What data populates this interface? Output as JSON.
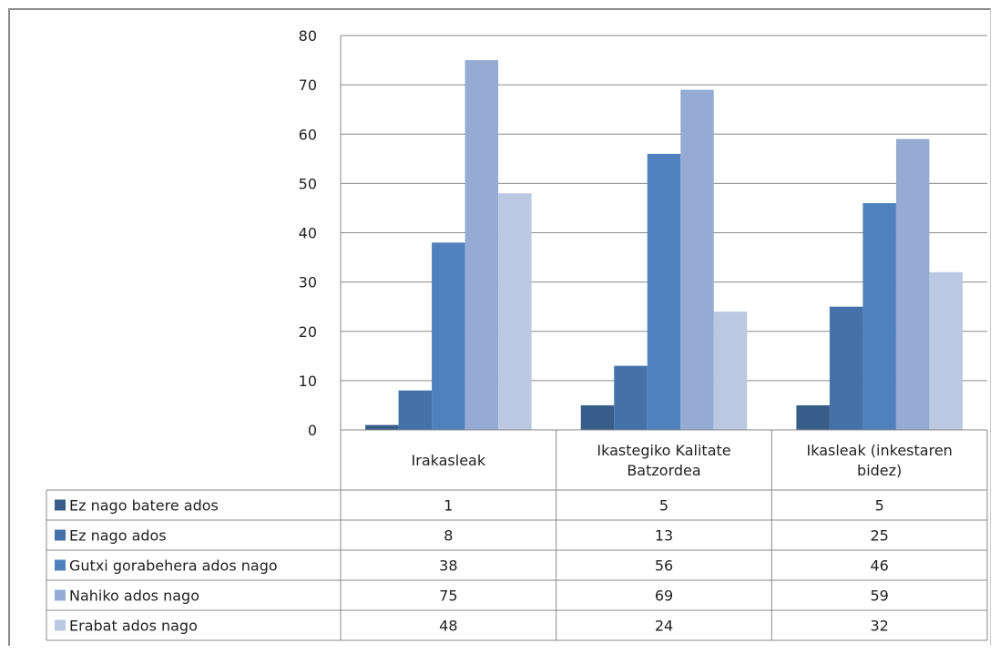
{
  "chart_data": {
    "type": "bar",
    "title": "",
    "xlabel": "",
    "ylabel": "",
    "categories": [
      "Irakasleak",
      "Ikastegiko Kalitate Batzordea",
      "Ikasleak (inkestaren bidez)"
    ],
    "category_lines": [
      [
        "Irakasleak"
      ],
      [
        "Ikastegiko Kalitate",
        "Batzordea"
      ],
      [
        "Ikasleak (inkestaren",
        "bidez)"
      ]
    ],
    "ylim": [
      0,
      80
    ],
    "yticks": [
      0,
      10,
      20,
      30,
      40,
      50,
      60,
      70,
      80
    ],
    "grid": true,
    "legend_placement": "data-table",
    "series": [
      {
        "name": "Ez nago batere ados",
        "values": [
          1,
          5,
          5
        ],
        "color": "#385d8a"
      },
      {
        "name": "Ez nago ados",
        "values": [
          8,
          13,
          25
        ],
        "color": "#4472a8"
      },
      {
        "name": "Gutxi gorabehera ados nago",
        "values": [
          38,
          56,
          46
        ],
        "color": "#4f81bd"
      },
      {
        "name": "Nahiko ados nago",
        "values": [
          75,
          69,
          59
        ],
        "color": "#95abd4"
      },
      {
        "name": "Erabat ados nago",
        "values": [
          48,
          24,
          32
        ],
        "color": "#bac8e2"
      }
    ]
  }
}
